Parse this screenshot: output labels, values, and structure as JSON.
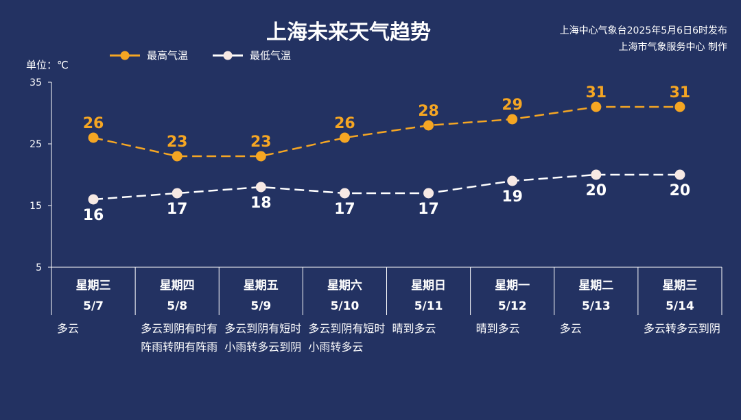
{
  "title": "上海未来天气趋势",
  "source": {
    "line1": "上海中心气象台2025年5月6日6时发布",
    "line2": "上海市气象服务中心 制作"
  },
  "legend": {
    "high": "最高气温",
    "low": "最低气温"
  },
  "unit_label": "单位：℃",
  "colors": {
    "background": "#233262",
    "high": "#F5A623",
    "low": "#FFFFFF",
    "low_marker": "#F7E9E4"
  },
  "days": [
    {
      "weekday": "星期三",
      "date": "5/7",
      "condition": "多云"
    },
    {
      "weekday": "星期四",
      "date": "5/8",
      "condition": "多云到阴有时有阵雨转阴有阵雨"
    },
    {
      "weekday": "星期五",
      "date": "5/9",
      "condition": "多云到阴有短时小雨转多云到阴"
    },
    {
      "weekday": "星期六",
      "date": "5/10",
      "condition": "多云到阴有短时小雨转多云"
    },
    {
      "weekday": "星期日",
      "date": "5/11",
      "condition": "晴到多云"
    },
    {
      "weekday": "星期一",
      "date": "5/12",
      "condition": "晴到多云"
    },
    {
      "weekday": "星期二",
      "date": "5/13",
      "condition": "多云"
    },
    {
      "weekday": "星期三",
      "date": "5/14",
      "condition": "多云转多云到阴"
    }
  ],
  "chart_data": {
    "type": "line",
    "categories": [
      "星期三 5/7",
      "星期四 5/8",
      "星期五 5/9",
      "星期六 5/10",
      "星期日 5/11",
      "星期一 5/12",
      "星期二 5/13",
      "星期三 5/14"
    ],
    "series": [
      {
        "name": "最高气温",
        "values": [
          26,
          23,
          23,
          26,
          28,
          29,
          31,
          31
        ]
      },
      {
        "name": "最低气温",
        "values": [
          16,
          17,
          18,
          17,
          17,
          19,
          20,
          20
        ]
      }
    ],
    "ylabel": "单位：℃",
    "ylim": [
      5,
      35
    ],
    "yticks": [
      5,
      15,
      25,
      35
    ],
    "line_style": "dashed",
    "data_labels": true
  }
}
